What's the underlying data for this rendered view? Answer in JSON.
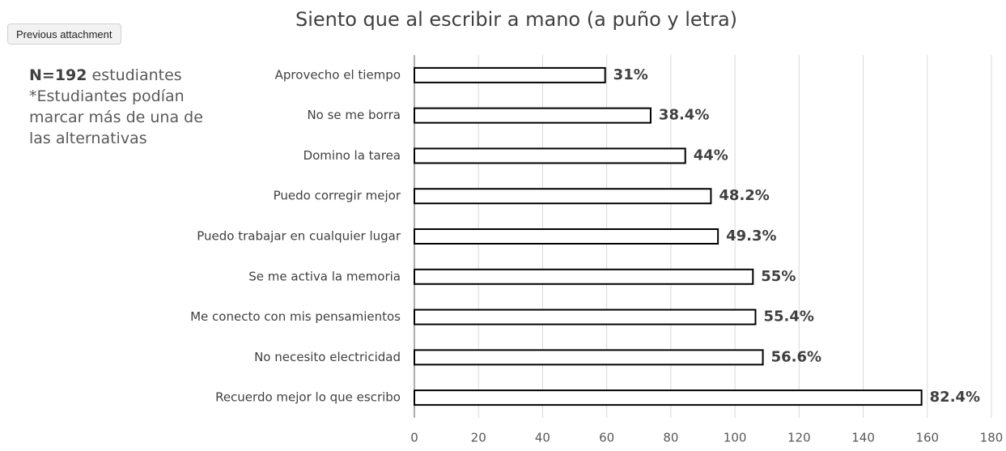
{
  "button": "Previous attachment",
  "note": {
    "bold": "N=192",
    "lines": [
      "estudiantes",
      "*Estudiantes podían",
      "marcar más de una de",
      "las alternativas"
    ]
  },
  "chart_data": {
    "type": "bar",
    "orientation": "horizontal",
    "title": "Siento que al escribir a mano (a puño y letra)",
    "categories": [
      "Aprovecho el tiempo",
      "No se me borra",
      "Domino la tarea",
      "Puedo corregir mejor",
      "Puedo trabajar en cualquier lugar",
      "Se me activa la memoria",
      "Me conecto con mis pensamientos",
      "No necesito electricidad",
      "Recuerdo mejor lo que escribo"
    ],
    "values": [
      59.5,
      73.7,
      84.5,
      92.5,
      94.7,
      105.6,
      106.4,
      108.7,
      158.2
    ],
    "value_labels": [
      "31%",
      "38.4%",
      "44%",
      "48.2%",
      "49.3%",
      "55%",
      "55.4%",
      "56.6%",
      "82.4%"
    ],
    "color": "#ffffff",
    "edgecolor": "#000000",
    "xlim": [
      0,
      180
    ],
    "xticks": [
      0,
      20,
      40,
      60,
      80,
      100,
      120,
      140,
      160,
      180
    ],
    "grid": true
  }
}
